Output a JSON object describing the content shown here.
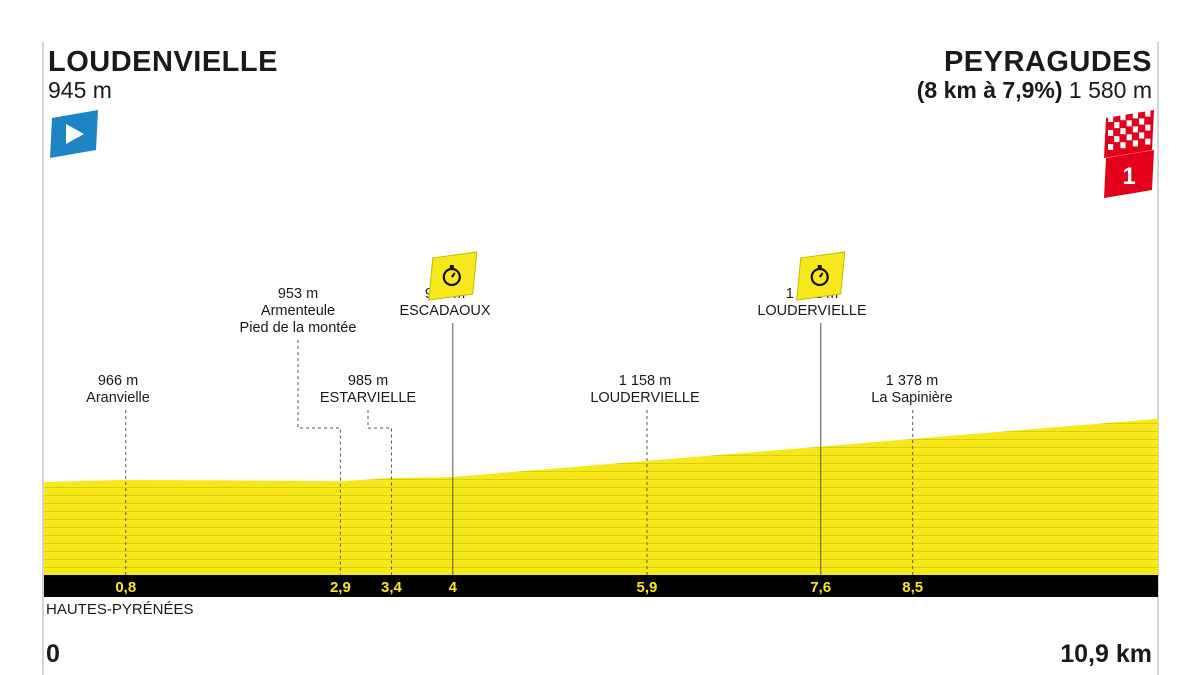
{
  "chart_data": {
    "type": "area",
    "start": {
      "name": "LOUDENVIELLE",
      "altitude": "945 m",
      "icon": "start-flag-icon"
    },
    "finish": {
      "name": "PEYRAGUDES",
      "climb": "(8 km à 7,9%)",
      "altitude": "1 580 m",
      "icons": [
        "finish-checkered-flag-icon",
        "category-1-climb-icon"
      ],
      "climb_category": "1"
    },
    "region": "HAUTES-PYRÉNÉES",
    "distance_start": "0",
    "distance_end": "10,9 km",
    "x_range_km": [
      0,
      10.9
    ],
    "profile": [
      {
        "x": 0,
        "y": 945
      },
      {
        "x": 0.8,
        "y": 966
      },
      {
        "x": 2.9,
        "y": 953
      },
      {
        "x": 3.4,
        "y": 985
      },
      {
        "x": 4,
        "y": 995
      },
      {
        "x": 5.9,
        "y": 1158
      },
      {
        "x": 7.6,
        "y": 1301
      },
      {
        "x": 8.5,
        "y": 1378
      },
      {
        "x": 10.9,
        "y": 1580
      }
    ],
    "points": [
      {
        "km": "0,8",
        "x": 0.8,
        "altitude": "966 m",
        "names": [
          "Aranvielle"
        ],
        "type": "passage"
      },
      {
        "km": "2,9",
        "x": 2.9,
        "altitude": "953 m",
        "names": [
          "Armenteule",
          "Pied de la montée"
        ],
        "type": "passage"
      },
      {
        "km": "3,4",
        "x": 3.4,
        "altitude": "985 m",
        "names": [
          "ESTARVIELLE"
        ],
        "type": "passage"
      },
      {
        "km": "4",
        "x": 4,
        "altitude": "995 m",
        "names": [
          "ESCADAOUX"
        ],
        "type": "intermediate-time",
        "icon": "stopwatch-icon"
      },
      {
        "km": "5,9",
        "x": 5.9,
        "altitude": "1 158 m",
        "names": [
          "LOUDERVIELLE"
        ],
        "type": "passage"
      },
      {
        "km": "7,6",
        "x": 7.6,
        "altitude": "1 301 m",
        "names": [
          "LOUDERVIELLE"
        ],
        "type": "intermediate-time",
        "icon": "stopwatch-icon"
      },
      {
        "km": "8,5",
        "x": 8.5,
        "altitude": "1 378 m",
        "names": [
          "La Sapinière"
        ],
        "type": "passage"
      }
    ],
    "colors": {
      "profile": "#f7e81c",
      "stripe": "#d9cc00",
      "bar": "#000000",
      "bar_text": "#f7e81c",
      "start": "#1d84c6",
      "finish": "#e3001b",
      "leader_line": "#555555"
    }
  }
}
